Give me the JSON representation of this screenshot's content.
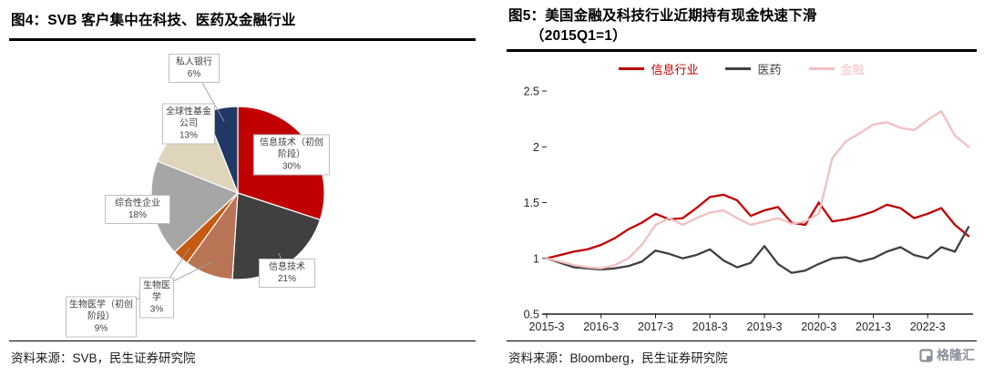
{
  "fig4": {
    "title": "图4：SVB 客户集中在科技、医药及金融行业",
    "source": "资料来源：SVB，民生证券研究院"
  },
  "fig5": {
    "title_line1": "图5：美国金融及科技行业近期持有现金快速下滑",
    "title_line2": "（2015Q1=1）",
    "source": "资料来源：Bloomberg，民生证券研究院"
  },
  "logo": {
    "text": "格隆汇"
  },
  "chart_data": [
    {
      "id": "svb-client-mix",
      "type": "pie",
      "title": "SVB 客户集中在科技、医药及金融行业",
      "slices": [
        {
          "label": "信息技术（初创阶段）",
          "value": 30,
          "color": "#C00000"
        },
        {
          "label": "信息技术",
          "value": 21,
          "color": "#404040"
        },
        {
          "label": "生物医学（初创阶段）",
          "value": 9,
          "color": "#B97455"
        },
        {
          "label": "生物医学",
          "value": 3,
          "color": "#C55A11"
        },
        {
          "label": "综合性企业",
          "value": 18,
          "color": "#A6A6A6"
        },
        {
          "label": "全球性基金公司",
          "value": 13,
          "color": "#DFD5BC"
        },
        {
          "label": "私人银行",
          "value": 6,
          "color": "#1F3864"
        }
      ]
    },
    {
      "id": "us-sector-cash",
      "type": "line",
      "title": "美国金融及科技行业近期持有现金快速下滑（2015Q1=1）",
      "ylim": [
        0.5,
        2.5
      ],
      "yticks": [
        0.5,
        1,
        1.5,
        2,
        2.5
      ],
      "legend_position": "top",
      "grid": false,
      "x": [
        "2015-3",
        "2015-6",
        "2015-9",
        "2015-12",
        "2016-3",
        "2016-6",
        "2016-9",
        "2016-12",
        "2017-3",
        "2017-6",
        "2017-9",
        "2017-12",
        "2018-3",
        "2018-6",
        "2018-9",
        "2018-12",
        "2019-3",
        "2019-6",
        "2019-9",
        "2019-12",
        "2020-3",
        "2020-6",
        "2020-9",
        "2020-12",
        "2021-3",
        "2021-6",
        "2021-9",
        "2021-12",
        "2022-3",
        "2022-6",
        "2022-9",
        "2022-12"
      ],
      "xtick_idx": [
        0,
        4,
        8,
        12,
        16,
        20,
        24,
        28
      ],
      "series": [
        {
          "name": "信息行业",
          "color": "#C00000",
          "values": [
            1.0,
            1.03,
            1.06,
            1.08,
            1.12,
            1.18,
            1.26,
            1.32,
            1.4,
            1.35,
            1.36,
            1.45,
            1.55,
            1.57,
            1.52,
            1.38,
            1.43,
            1.46,
            1.32,
            1.3,
            1.5,
            1.33,
            1.35,
            1.38,
            1.42,
            1.48,
            1.45,
            1.36,
            1.4,
            1.45,
            1.3,
            1.2
          ]
        },
        {
          "name": "医药",
          "color": "#404040",
          "values": [
            1.0,
            0.96,
            0.92,
            0.91,
            0.9,
            0.91,
            0.93,
            0.97,
            1.07,
            1.04,
            1.0,
            1.03,
            1.08,
            0.98,
            0.92,
            0.96,
            1.11,
            0.95,
            0.87,
            0.89,
            0.95,
            1.0,
            1.01,
            0.97,
            1.0,
            1.06,
            1.1,
            1.03,
            1.0,
            1.1,
            1.06,
            1.28
          ]
        },
        {
          "name": "金融",
          "color": "#F2BFBF",
          "values": [
            1.0,
            0.97,
            0.94,
            0.92,
            0.91,
            0.94,
            1.0,
            1.12,
            1.3,
            1.36,
            1.3,
            1.36,
            1.41,
            1.43,
            1.36,
            1.3,
            1.33,
            1.36,
            1.31,
            1.33,
            1.4,
            1.9,
            2.05,
            2.12,
            2.2,
            2.22,
            2.17,
            2.15,
            2.24,
            2.32,
            2.1,
            2.0
          ]
        }
      ]
    }
  ]
}
